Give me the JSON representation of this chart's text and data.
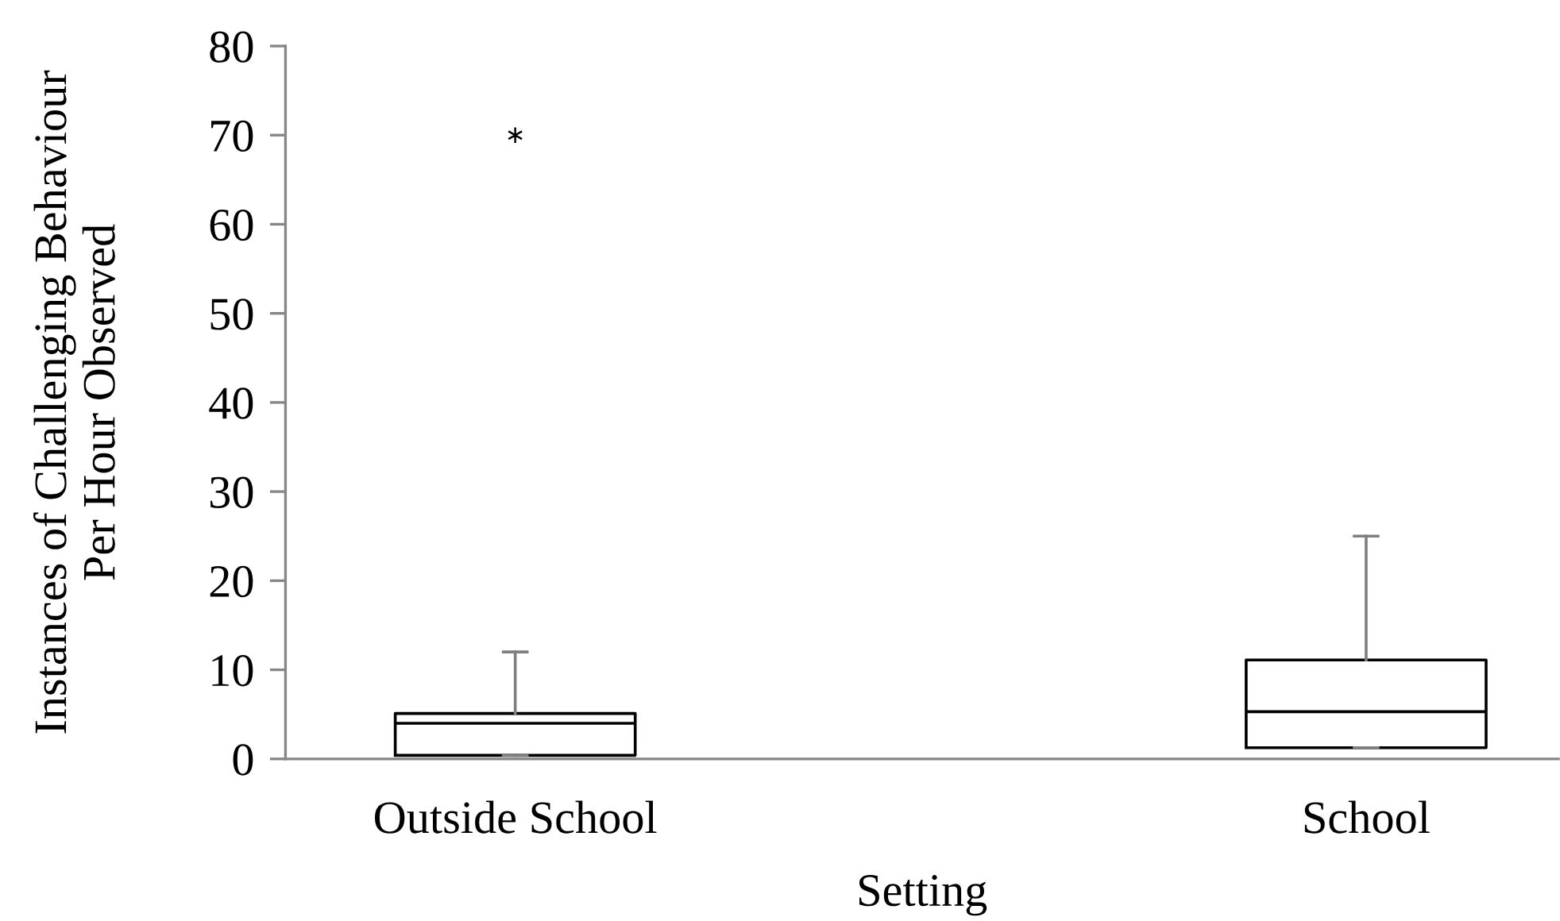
{
  "chart_data": {
    "type": "box",
    "xlabel": "Setting",
    "ylabel": "Instances of Challenging Behaviour\nPer Hour Observed",
    "categories": [
      "Outside School",
      "School"
    ],
    "boxes": [
      {
        "low": 0.4,
        "q1": 0.4,
        "median": 4,
        "q3": 5.1,
        "high": 12,
        "outliers": [
          70
        ]
      },
      {
        "low": 1.25,
        "q1": 1.25,
        "median": 5.3,
        "q3": 11.1,
        "high": 25
      }
    ],
    "ylim": [
      0,
      80
    ],
    "yticks": [
      0,
      10,
      20,
      30,
      40,
      50,
      60,
      70,
      80
    ],
    "grid": false,
    "marker": "star"
  }
}
